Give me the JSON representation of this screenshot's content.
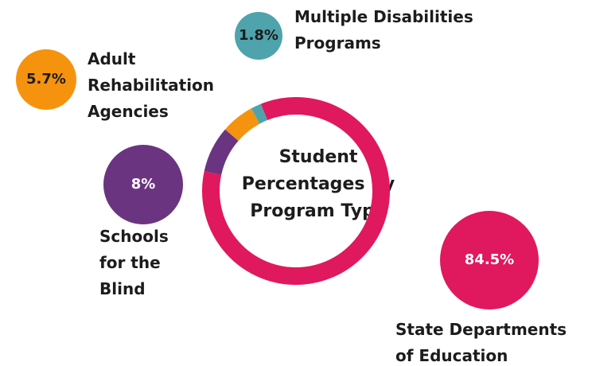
{
  "chart_data": {
    "type": "donut",
    "title": "Student Percentages by Program Type",
    "categories": [
      "State Departments of Education",
      "Schools for the Blind",
      "Adult Rehabilitation Agencies",
      "Multiple Disabilities Programs"
    ],
    "values": [
      84.5,
      8,
      5.7,
      1.8
    ],
    "value_labels": [
      "84.5%",
      "8%",
      "5.7%",
      "1.8%"
    ],
    "colors": [
      "#e0185e",
      "#6b3480",
      "#f5930f",
      "#4fa3ac"
    ]
  }
}
